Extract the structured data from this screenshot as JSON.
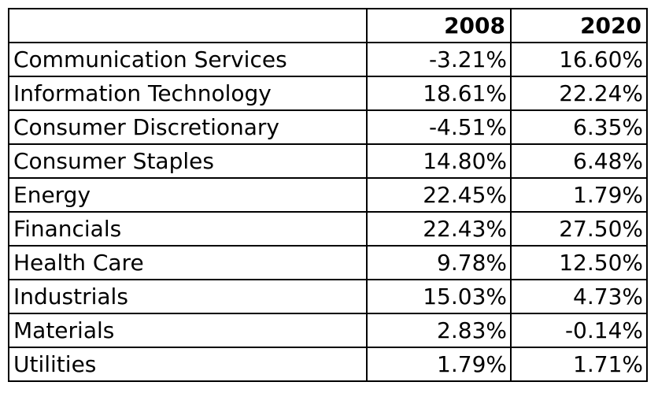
{
  "chart_data": {
    "type": "table",
    "columns": [
      "",
      "2008",
      "2020"
    ],
    "rows": [
      {
        "sector": "Communication Services",
        "v2008": "-3.21%",
        "v2020": "16.60%"
      },
      {
        "sector": "Information Technology",
        "v2008": "18.61%",
        "v2020": "22.24%"
      },
      {
        "sector": "Consumer Discretionary",
        "v2008": "-4.51%",
        "v2020": "6.35%"
      },
      {
        "sector": "Consumer Staples",
        "v2008": "14.80%",
        "v2020": "6.48%"
      },
      {
        "sector": "Energy",
        "v2008": "22.45%",
        "v2020": "1.79%"
      },
      {
        "sector": "Financials",
        "v2008": "22.43%",
        "v2020": "27.50%"
      },
      {
        "sector": "Health Care",
        "v2008": "9.78%",
        "v2020": "12.50%"
      },
      {
        "sector": "Industrials",
        "v2008": "15.03%",
        "v2020": "4.73%"
      },
      {
        "sector": "Materials",
        "v2008": "2.83%",
        "v2020": "-0.14%"
      },
      {
        "sector": "Utilities",
        "v2008": "1.79%",
        "v2020": "1.71%"
      }
    ]
  }
}
